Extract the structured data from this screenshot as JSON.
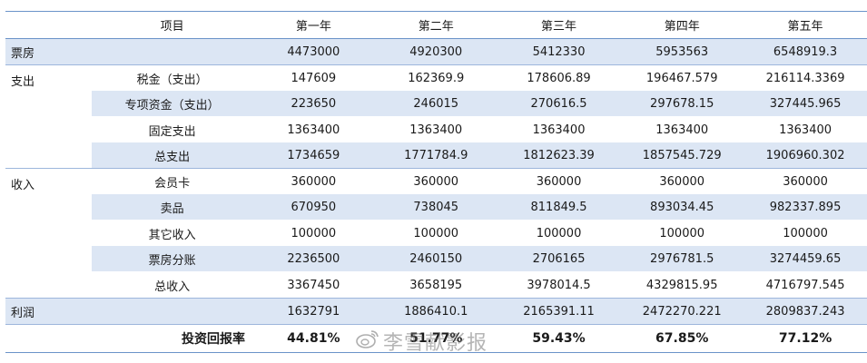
{
  "table": {
    "header": [
      "",
      "项目",
      "第一年",
      "第二年",
      "第三年",
      "第四年",
      "第五年"
    ],
    "box_office": {
      "category": "票房",
      "values": [
        "4473000",
        "4920300",
        "5412330",
        "5953563",
        "6548919.3"
      ]
    },
    "expense": {
      "category": "支出",
      "rows": [
        {
          "label": "税金（支出）",
          "values": [
            "147609",
            "162369.9",
            "178606.89",
            "196467.579",
            "216114.3369"
          ]
        },
        {
          "label": "专项资金（支出）",
          "values": [
            "223650",
            "246015",
            "270616.5",
            "297678.15",
            "327445.965"
          ]
        },
        {
          "label": "固定支出",
          "values": [
            "1363400",
            "1363400",
            "1363400",
            "1363400",
            "1363400"
          ]
        },
        {
          "label": "总支出",
          "values": [
            "1734659",
            "1771784.9",
            "1812623.39",
            "1857545.729",
            "1906960.302"
          ]
        }
      ]
    },
    "income": {
      "category": "收入",
      "rows": [
        {
          "label": "会员卡",
          "values": [
            "360000",
            "360000",
            "360000",
            "360000",
            "360000"
          ]
        },
        {
          "label": "卖品",
          "values": [
            "670950",
            "738045",
            "811849.5",
            "893034.45",
            "982337.895"
          ]
        },
        {
          "label": "其它收入",
          "values": [
            "100000",
            "100000",
            "100000",
            "100000",
            "100000"
          ]
        },
        {
          "label": "票房分账",
          "values": [
            "2236500",
            "2460150",
            "2706165",
            "2976781.5",
            "3274459.65"
          ]
        },
        {
          "label": "总收入",
          "values": [
            "3367450",
            "3658195",
            "3978014.5",
            "4329815.95",
            "4716797.545"
          ]
        }
      ]
    },
    "profit": {
      "category": "利润",
      "values": [
        "1632791",
        "1886410.1",
        "2165391.11",
        "2472270.221",
        "2809837.243"
      ]
    },
    "roi": {
      "label": "投资回报率",
      "values": [
        "44.81%",
        "51.77%",
        "59.43%",
        "67.85%",
        "77.12%"
      ]
    }
  },
  "watermark": {
    "text": "李雪献影报",
    "icon": "weibo-icon"
  }
}
